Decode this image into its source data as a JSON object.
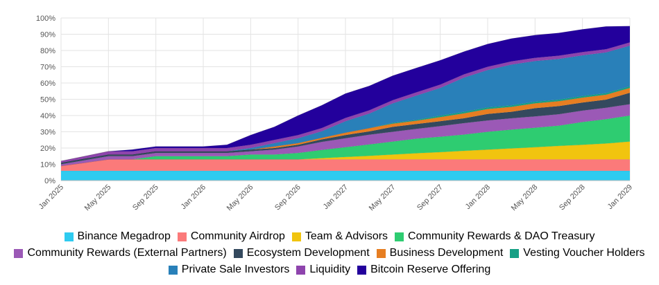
{
  "chart_data": {
    "type": "area",
    "stacked": true,
    "title": "",
    "xlabel": "",
    "ylabel": "",
    "ylim": [
      0,
      100
    ],
    "y_ticks": [
      "0%",
      "10%",
      "20%",
      "30%",
      "40%",
      "50%",
      "60%",
      "70%",
      "80%",
      "90%",
      "100%"
    ],
    "x_tick_labels": [
      "Jan 2025",
      "May 2025",
      "Sep 2025",
      "Jan 2026",
      "May 2026",
      "Sep 2026",
      "Jan 2027",
      "May 2027",
      "Sep 2027",
      "Jan 2028",
      "May 2028",
      "Sep 2028",
      "Jan 2029"
    ],
    "x": [
      0,
      2,
      4,
      6,
      8,
      10,
      12,
      14,
      16,
      18,
      20,
      22,
      24,
      26,
      28,
      30,
      32,
      34,
      36,
      38,
      40,
      42,
      44,
      46,
      48
    ],
    "x_unit": "months since Jan 2025",
    "series": [
      {
        "name": "Binance Megadrop",
        "color": "#2ecbf0",
        "values": [
          6,
          6,
          6,
          6,
          6,
          6,
          6,
          6,
          6,
          6,
          6,
          6,
          6,
          6,
          6,
          6,
          6,
          6,
          6,
          6,
          6,
          6,
          6,
          6,
          6
        ]
      },
      {
        "name": "Community Airdrop",
        "color": "#fb7a7a",
        "values": [
          3,
          5,
          7,
          7,
          7,
          7,
          7,
          7,
          7,
          7,
          7,
          7,
          7,
          7,
          7,
          7,
          7,
          7,
          7,
          7,
          7,
          7,
          7,
          7,
          7
        ]
      },
      {
        "name": "Team & Advisors",
        "color": "#f1c40f",
        "values": [
          0,
          0,
          0,
          0,
          0,
          0,
          0,
          0,
          0,
          0,
          0,
          0.8,
          1.5,
          2.2,
          3,
          3.8,
          4.5,
          5.3,
          6,
          6.8,
          7.5,
          8.3,
          9,
          9.8,
          11
        ]
      },
      {
        "name": "Community Rewards & DAO Treasury",
        "color": "#2ecc71",
        "values": [
          0,
          0,
          0,
          0,
          2,
          2,
          2,
          2,
          3,
          3,
          4,
          5,
          6,
          7,
          8,
          9,
          9.5,
          10,
          11,
          11.5,
          12,
          12.5,
          14,
          15,
          16
        ]
      },
      {
        "name": "Community Rewards (External Partners)",
        "color": "#9b59b6",
        "values": [
          1,
          1.5,
          2,
          2,
          2,
          2,
          2,
          2,
          2,
          3,
          4,
          5,
          5.5,
          6,
          6,
          6,
          6.5,
          7,
          7,
          7,
          7,
          7,
          7,
          7,
          7
        ]
      },
      {
        "name": "Ecosystem Development",
        "color": "#34495e",
        "values": [
          1,
          1,
          1,
          1,
          1,
          1,
          1,
          1,
          1,
          1,
          1,
          1.5,
          2,
          2,
          3,
          3,
          3,
          3,
          4,
          4,
          5,
          5,
          5,
          5,
          7
        ]
      },
      {
        "name": "Business Development",
        "color": "#e67e22",
        "values": [
          0,
          0,
          0,
          0,
          0,
          0,
          0,
          0,
          0,
          1,
          1,
          1,
          1.5,
          2,
          2,
          2,
          2.5,
          3,
          3,
          3,
          3,
          3,
          3,
          3,
          3
        ]
      },
      {
        "name": "Vesting Voucher Holders",
        "color": "#16a085",
        "values": [
          0,
          0,
          0,
          0,
          0,
          0,
          0,
          0,
          0,
          0,
          0,
          0,
          0,
          0,
          0.5,
          0.5,
          1,
          1,
          1,
          1,
          1,
          1,
          1,
          1,
          1
        ]
      },
      {
        "name": "Private Sale Investors",
        "color": "#2980b9",
        "values": [
          0,
          0,
          0,
          0,
          0,
          0,
          0,
          0,
          1,
          2,
          3,
          4,
          7,
          9,
          12,
          15,
          17,
          21,
          23,
          25,
          25,
          25,
          25,
          25,
          25
        ]
      },
      {
        "name": "Liquidity",
        "color": "#8e44ad",
        "values": [
          1,
          1.5,
          2,
          2,
          2,
          2,
          2,
          2,
          2,
          2,
          2,
          2,
          2,
          2,
          2,
          2,
          2,
          2,
          2,
          2,
          2,
          2,
          2,
          2,
          2
        ]
      },
      {
        "name": "Bitcoin Reserve Offering",
        "color": "#23009c",
        "values": [
          0,
          0,
          0,
          1,
          1,
          1,
          1,
          2,
          6,
          8,
          12,
          14,
          15,
          15,
          15,
          15,
          15,
          14,
          14,
          14,
          14,
          14,
          14,
          14,
          10
        ]
      }
    ]
  }
}
